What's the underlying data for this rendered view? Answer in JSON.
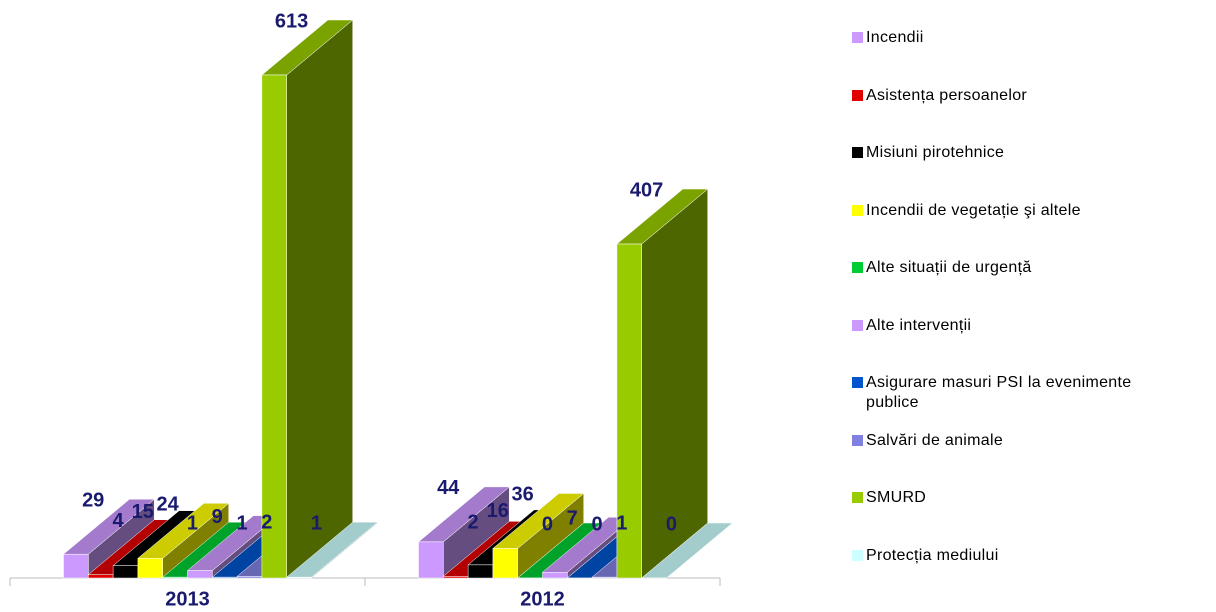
{
  "chart_data": {
    "type": "bar3d",
    "categories": [
      "2013",
      "2012"
    ],
    "series": [
      {
        "name": "Incendii",
        "color": "#cc99ff",
        "values": [
          29,
          44
        ]
      },
      {
        "name": "Asistența persoanelor",
        "color": "#e00000",
        "values": [
          4,
          2
        ]
      },
      {
        "name": "Misiuni pirotehnice",
        "color": "#000000",
        "values": [
          15,
          16
        ]
      },
      {
        "name": "Incendii de vegetație şi altele",
        "color": "#ffff00",
        "values": [
          24,
          36
        ]
      },
      {
        "name": "Alte situații de urgență",
        "color": "#00cc33",
        "values": [
          1,
          0
        ]
      },
      {
        "name": "Alte intervenții",
        "color": "#cc99ff",
        "values": [
          9,
          7
        ]
      },
      {
        "name": "Asigurare masuri PSI la evenimente publice",
        "color": "#0055cc",
        "values": [
          1,
          0
        ]
      },
      {
        "name": "Salvări de animale",
        "color": "#8080e0",
        "values": [
          2,
          1
        ]
      },
      {
        "name": "SMURD",
        "color": "#99cc00",
        "values": [
          613,
          407
        ]
      },
      {
        "name": "Protecția mediului",
        "color": "#ccffff",
        "values": [
          1,
          0
        ]
      }
    ]
  }
}
